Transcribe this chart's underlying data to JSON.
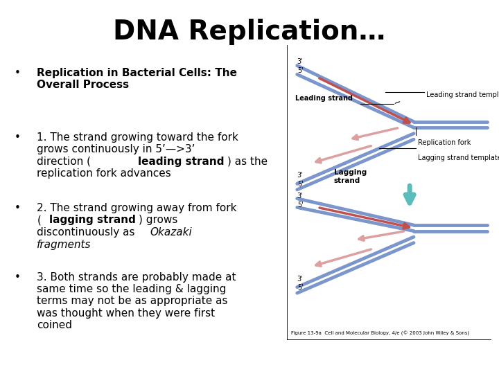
{
  "title": "DNA Replication…",
  "title_fontsize": 28,
  "title_fontweight": "bold",
  "background_color": "#ffffff",
  "bullet1_bold": "Replication in Bacterial Cells: The\nOverall Process",
  "bullet2": "1. The strand growing toward the fork\ngrows continuously in 5’—>3’\ndirection (",
  "bullet2_bold": "leading strand",
  "bullet2_end": ") as the\nreplication fork advances",
  "bullet3": "2. The strand growing away from fork\n(",
  "bullet3_bold": "lagging strand",
  "bullet3_mid": ") grows\ndiscontinuously as ",
  "bullet3_italic": "Okazaki\nfragments",
  "bullet4": "3. Both strands are probably made at\nsame time so the leading & lagging\nterms may not be as appropriate as\nwas thought when they were first\ncoined",
  "figure_caption": "Figure 13-9a  Cell and Molecular Biology, 4/e (© 2003 John Wiley & Sons)",
  "blue_color": "#7b96cc",
  "red_color": "#c0504d",
  "pink_color": "#dda0a0",
  "teal_color": "#5bbcbc",
  "label_fontsize": 7,
  "text_fontsize": 11
}
